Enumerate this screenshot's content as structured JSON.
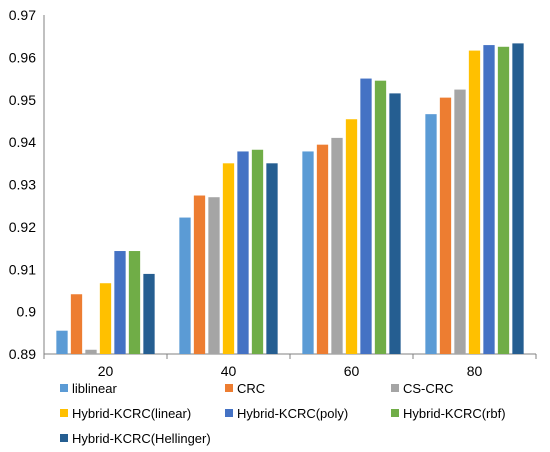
{
  "chart_data": {
    "type": "bar",
    "title": "",
    "xlabel": "",
    "ylabel": "",
    "categories": [
      "20",
      "40",
      "60",
      "80"
    ],
    "ylim": [
      0.89,
      0.97
    ],
    "yticks": [
      "0.89",
      "0.9",
      "0.91",
      "0.92",
      "0.93",
      "0.94",
      "0.95",
      "0.96",
      "0.97"
    ],
    "grid": false,
    "legend_position": "bottom",
    "series": [
      {
        "name": "liblinear",
        "color": "#5B9BD5",
        "values": [
          0.8955,
          0.9222,
          0.9378,
          0.9466
        ]
      },
      {
        "name": "CRC",
        "color": "#ED7D31",
        "values": [
          0.9041,
          0.9274,
          0.9394,
          0.9505
        ]
      },
      {
        "name": "CS-CRC",
        "color": "#A5A5A5",
        "values": [
          0.891,
          0.927,
          0.941,
          0.9524
        ]
      },
      {
        "name": "Hybrid-KCRC(linear)",
        "color": "#FFC000",
        "values": [
          0.9067,
          0.935,
          0.9454,
          0.9616
        ]
      },
      {
        "name": "Hybrid-KCRC(poly)",
        "color": "#4472C4",
        "values": [
          0.9143,
          0.9378,
          0.955,
          0.9629
        ]
      },
      {
        "name": "Hybrid-KCRC(rbf)",
        "color": "#70AD47",
        "values": [
          0.9143,
          0.9382,
          0.9545,
          0.9625
        ]
      },
      {
        "name": "Hybrid-KCRC(Hellinger)",
        "color": "#255E91",
        "values": [
          0.9089,
          0.935,
          0.9515,
          0.9633
        ]
      }
    ]
  }
}
